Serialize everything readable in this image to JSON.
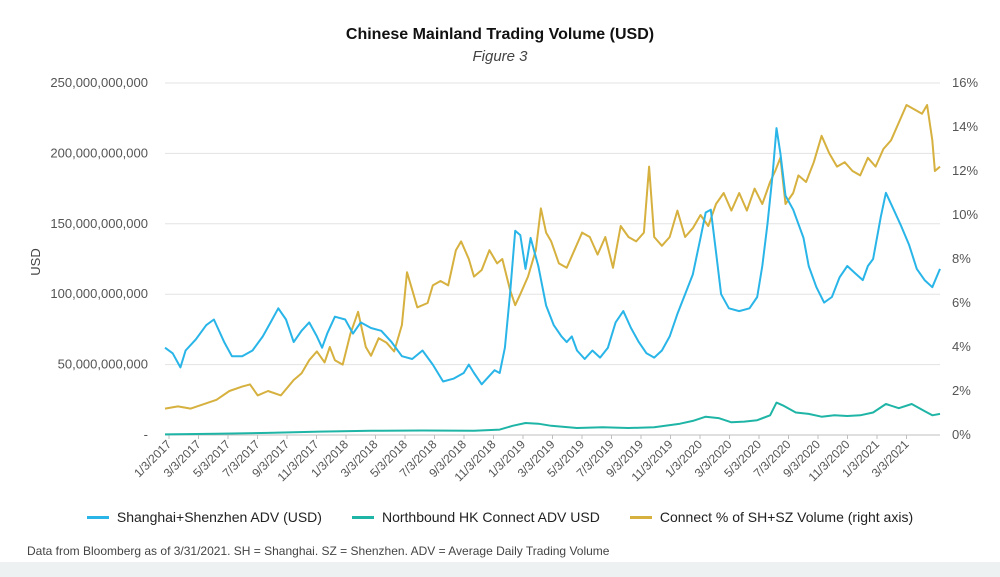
{
  "colors": {
    "sh_sz": "#29b5e8",
    "northbound": "#1fb5a6",
    "connect_pct": "#d6b13f"
  },
  "chart_data": {
    "type": "line",
    "title": "Chinese Mainland Trading Volume (USD)",
    "subtitle": "Figure 3",
    "ylabel": "USD",
    "ylim": [
      0,
      250000000000
    ],
    "y2lim": [
      0,
      16
    ],
    "y_ticks": [
      "-",
      "50,000,000,000",
      "100,000,000,000",
      "150,000,000,000",
      "200,000,000,000",
      "250,000,000,000"
    ],
    "y2_ticks": [
      "0%",
      "2%",
      "4%",
      "6%",
      "8%",
      "10%",
      "12%",
      "14%",
      "16%"
    ],
    "x_ticks": [
      "1/3/2017",
      "3/3/2017",
      "5/3/2017",
      "7/3/2017",
      "9/3/2017",
      "11/3/2017",
      "1/3/2018",
      "3/3/2018",
      "5/3/2018",
      "7/3/2018",
      "9/3/2018",
      "11/3/2018",
      "1/3/2019",
      "3/3/2019",
      "5/3/2019",
      "7/3/2019",
      "9/3/2019",
      "11/3/2019",
      "1/3/2020",
      "3/3/2020",
      "5/3/2020",
      "7/3/2020",
      "9/3/2020",
      "11/3/2020",
      "1/3/2021",
      "3/3/2021"
    ],
    "grid": true,
    "legend_position": "bottom",
    "series": [
      {
        "name": "Shanghai+Shenzhen ADV (USD)",
        "axis": "left",
        "points": [
          [
            0,
            62000000000
          ],
          [
            0.3,
            58000000000
          ],
          [
            0.6,
            48000000000
          ],
          [
            0.8,
            60000000000
          ],
          [
            1.2,
            68000000000
          ],
          [
            1.6,
            78000000000
          ],
          [
            1.9,
            82000000000
          ],
          [
            2.3,
            66000000000
          ],
          [
            2.6,
            56000000000
          ],
          [
            3.0,
            56000000000
          ],
          [
            3.4,
            60000000000
          ],
          [
            3.8,
            70000000000
          ],
          [
            4.1,
            80000000000
          ],
          [
            4.4,
            90000000000
          ],
          [
            4.7,
            82000000000
          ],
          [
            5.0,
            66000000000
          ],
          [
            5.3,
            74000000000
          ],
          [
            5.6,
            80000000000
          ],
          [
            5.9,
            70000000000
          ],
          [
            6.1,
            62000000000
          ],
          [
            6.3,
            72000000000
          ],
          [
            6.6,
            84000000000
          ],
          [
            7.0,
            82000000000
          ],
          [
            7.3,
            72000000000
          ],
          [
            7.6,
            80000000000
          ],
          [
            8.0,
            76000000000
          ],
          [
            8.4,
            74000000000
          ],
          [
            8.8,
            66000000000
          ],
          [
            9.2,
            56000000000
          ],
          [
            9.6,
            54000000000
          ],
          [
            10.0,
            60000000000
          ],
          [
            10.4,
            50000000000
          ],
          [
            10.8,
            38000000000
          ],
          [
            11.2,
            40000000000
          ],
          [
            11.6,
            44000000000
          ],
          [
            11.8,
            50000000000
          ],
          [
            12.0,
            44000000000
          ],
          [
            12.3,
            36000000000
          ],
          [
            12.5,
            40000000000
          ],
          [
            12.8,
            46000000000
          ],
          [
            13.0,
            44000000000
          ],
          [
            13.2,
            62000000000
          ],
          [
            13.4,
            100000000000
          ],
          [
            13.6,
            145000000000
          ],
          [
            13.8,
            142000000000
          ],
          [
            14.0,
            118000000000
          ],
          [
            14.2,
            140000000000
          ],
          [
            14.5,
            120000000000
          ],
          [
            14.8,
            92000000000
          ],
          [
            15.1,
            78000000000
          ],
          [
            15.4,
            70000000000
          ],
          [
            15.6,
            66000000000
          ],
          [
            15.8,
            70000000000
          ],
          [
            16.0,
            60000000000
          ],
          [
            16.3,
            54000000000
          ],
          [
            16.6,
            60000000000
          ],
          [
            16.9,
            55000000000
          ],
          [
            17.2,
            62000000000
          ],
          [
            17.5,
            80000000000
          ],
          [
            17.8,
            88000000000
          ],
          [
            18.1,
            76000000000
          ],
          [
            18.4,
            66000000000
          ],
          [
            18.7,
            58000000000
          ],
          [
            19.0,
            55000000000
          ],
          [
            19.3,
            60000000000
          ],
          [
            19.6,
            70000000000
          ],
          [
            19.9,
            86000000000
          ],
          [
            20.2,
            100000000000
          ],
          [
            20.5,
            114000000000
          ],
          [
            20.8,
            140000000000
          ],
          [
            21.0,
            158000000000
          ],
          [
            21.2,
            160000000000
          ],
          [
            21.4,
            130000000000
          ],
          [
            21.6,
            100000000000
          ],
          [
            21.9,
            90000000000
          ],
          [
            22.3,
            88000000000
          ],
          [
            22.7,
            90000000000
          ],
          [
            23.0,
            98000000000
          ],
          [
            23.2,
            120000000000
          ],
          [
            23.4,
            150000000000
          ],
          [
            23.6,
            185000000000
          ],
          [
            23.75,
            218000000000
          ],
          [
            23.9,
            200000000000
          ],
          [
            24.1,
            170000000000
          ],
          [
            24.4,
            160000000000
          ],
          [
            24.8,
            140000000000
          ],
          [
            25.0,
            120000000000
          ],
          [
            25.3,
            105000000000
          ],
          [
            25.6,
            94000000000
          ],
          [
            25.9,
            98000000000
          ],
          [
            26.2,
            112000000000
          ],
          [
            26.5,
            120000000000
          ],
          [
            26.8,
            115000000000
          ],
          [
            27.1,
            110000000000
          ],
          [
            27.3,
            120000000000
          ],
          [
            27.5,
            125000000000
          ],
          [
            27.8,
            155000000000
          ],
          [
            28.0,
            172000000000
          ],
          [
            28.3,
            160000000000
          ],
          [
            28.6,
            148000000000
          ],
          [
            28.9,
            135000000000
          ],
          [
            29.2,
            118000000000
          ],
          [
            29.5,
            110000000000
          ],
          [
            29.8,
            105000000000
          ],
          [
            30.1,
            118000000000
          ]
        ]
      },
      {
        "name": "Northbound HK Connect ADV USD",
        "axis": "left",
        "points": [
          [
            0,
            400000000
          ],
          [
            2,
            900000000
          ],
          [
            4,
            1500000000
          ],
          [
            6,
            2400000000
          ],
          [
            8,
            3000000000
          ],
          [
            10,
            3200000000
          ],
          [
            12,
            3000000000
          ],
          [
            13,
            3800000000
          ],
          [
            13.5,
            6500000000
          ],
          [
            14,
            8500000000
          ],
          [
            14.5,
            8000000000
          ],
          [
            15,
            6500000000
          ],
          [
            16,
            5000000000
          ],
          [
            17,
            5500000000
          ],
          [
            18,
            5000000000
          ],
          [
            19,
            5500000000
          ],
          [
            20,
            8000000000
          ],
          [
            20.5,
            10000000000
          ],
          [
            21,
            13000000000
          ],
          [
            21.5,
            12000000000
          ],
          [
            22,
            9000000000
          ],
          [
            22.5,
            9500000000
          ],
          [
            23,
            10500000000
          ],
          [
            23.5,
            14000000000
          ],
          [
            23.75,
            23000000000
          ],
          [
            24,
            21000000000
          ],
          [
            24.5,
            16000000000
          ],
          [
            25,
            15000000000
          ],
          [
            25.5,
            13000000000
          ],
          [
            26,
            14000000000
          ],
          [
            26.5,
            13500000000
          ],
          [
            27,
            14000000000
          ],
          [
            27.5,
            16000000000
          ],
          [
            28,
            22000000000
          ],
          [
            28.5,
            19000000000
          ],
          [
            29,
            22000000000
          ],
          [
            29.5,
            17000000000
          ],
          [
            29.8,
            14000000000
          ],
          [
            30.1,
            15000000000
          ]
        ]
      },
      {
        "name": "Connect % of SH+SZ Volume (right axis)",
        "axis": "right",
        "points": [
          [
            0,
            1.2
          ],
          [
            0.5,
            1.3
          ],
          [
            1.0,
            1.2
          ],
          [
            1.5,
            1.4
          ],
          [
            2.0,
            1.6
          ],
          [
            2.5,
            2.0
          ],
          [
            3.0,
            2.2
          ],
          [
            3.3,
            2.3
          ],
          [
            3.6,
            1.8
          ],
          [
            4.0,
            2.0
          ],
          [
            4.5,
            1.8
          ],
          [
            5.0,
            2.5
          ],
          [
            5.3,
            2.8
          ],
          [
            5.6,
            3.4
          ],
          [
            5.9,
            3.8
          ],
          [
            6.2,
            3.3
          ],
          [
            6.4,
            4.0
          ],
          [
            6.6,
            3.4
          ],
          [
            6.9,
            3.2
          ],
          [
            7.2,
            4.6
          ],
          [
            7.5,
            5.6
          ],
          [
            7.8,
            4.0
          ],
          [
            8.0,
            3.6
          ],
          [
            8.3,
            4.4
          ],
          [
            8.6,
            4.2
          ],
          [
            8.9,
            3.8
          ],
          [
            9.2,
            5.0
          ],
          [
            9.4,
            7.4
          ],
          [
            9.6,
            6.6
          ],
          [
            9.8,
            5.8
          ],
          [
            10.2,
            6.0
          ],
          [
            10.4,
            6.8
          ],
          [
            10.7,
            7.0
          ],
          [
            11.0,
            6.8
          ],
          [
            11.3,
            8.4
          ],
          [
            11.5,
            8.8
          ],
          [
            11.8,
            8.0
          ],
          [
            12.0,
            7.2
          ],
          [
            12.3,
            7.5
          ],
          [
            12.6,
            8.4
          ],
          [
            12.9,
            7.8
          ],
          [
            13.1,
            8.0
          ],
          [
            13.4,
            6.6
          ],
          [
            13.6,
            5.9
          ],
          [
            13.8,
            6.4
          ],
          [
            14.1,
            7.2
          ],
          [
            14.4,
            8.4
          ],
          [
            14.6,
            10.3
          ],
          [
            14.8,
            9.2
          ],
          [
            15.0,
            8.8
          ],
          [
            15.3,
            7.8
          ],
          [
            15.6,
            7.6
          ],
          [
            15.9,
            8.4
          ],
          [
            16.2,
            9.2
          ],
          [
            16.5,
            9.0
          ],
          [
            16.8,
            8.2
          ],
          [
            17.1,
            9.0
          ],
          [
            17.4,
            7.6
          ],
          [
            17.7,
            9.5
          ],
          [
            18.0,
            9.0
          ],
          [
            18.3,
            8.8
          ],
          [
            18.6,
            9.2
          ],
          [
            18.8,
            12.2
          ],
          [
            19.0,
            9.0
          ],
          [
            19.3,
            8.6
          ],
          [
            19.6,
            9.0
          ],
          [
            19.9,
            10.2
          ],
          [
            20.2,
            9.0
          ],
          [
            20.5,
            9.4
          ],
          [
            20.8,
            10.0
          ],
          [
            21.1,
            9.5
          ],
          [
            21.4,
            10.5
          ],
          [
            21.7,
            11.0
          ],
          [
            22.0,
            10.2
          ],
          [
            22.3,
            11.0
          ],
          [
            22.6,
            10.2
          ],
          [
            22.9,
            11.2
          ],
          [
            23.2,
            10.5
          ],
          [
            23.5,
            11.5
          ],
          [
            23.7,
            12.0
          ],
          [
            23.9,
            12.6
          ],
          [
            24.1,
            10.5
          ],
          [
            24.4,
            11.0
          ],
          [
            24.6,
            11.8
          ],
          [
            24.9,
            11.5
          ],
          [
            25.2,
            12.4
          ],
          [
            25.5,
            13.6
          ],
          [
            25.8,
            12.8
          ],
          [
            26.1,
            12.2
          ],
          [
            26.4,
            12.4
          ],
          [
            26.7,
            12.0
          ],
          [
            27.0,
            11.8
          ],
          [
            27.3,
            12.6
          ],
          [
            27.6,
            12.2
          ],
          [
            27.9,
            13.0
          ],
          [
            28.2,
            13.4
          ],
          [
            28.5,
            14.2
          ],
          [
            28.8,
            15.0
          ],
          [
            29.1,
            14.8
          ],
          [
            29.4,
            14.6
          ],
          [
            29.6,
            15.0
          ],
          [
            29.8,
            13.4
          ],
          [
            29.9,
            12.0
          ],
          [
            30.1,
            12.2
          ]
        ]
      }
    ]
  },
  "source_note": "Data from Bloomberg as of 3/31/2021. SH = Shanghai. SZ = Shenzhen. ADV = Average Daily Trading Volume"
}
